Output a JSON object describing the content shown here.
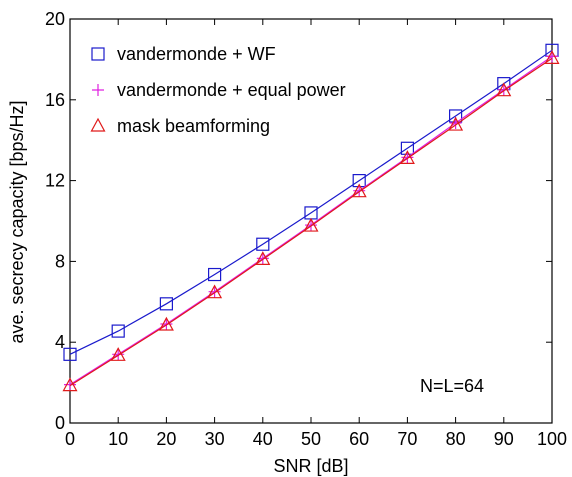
{
  "chart_data": {
    "type": "line",
    "xlabel": "SNR [dB]",
    "ylabel": "ave. secrecy capacity [bps/Hz]",
    "xlim": [
      0,
      100
    ],
    "ylim": [
      0,
      20
    ],
    "x_ticks": [
      "0",
      "10",
      "20",
      "30",
      "40",
      "50",
      "60",
      "70",
      "80",
      "90",
      "100"
    ],
    "y_ticks": [
      "0",
      "4",
      "8",
      "12",
      "16",
      "20"
    ],
    "x": [
      0,
      10,
      20,
      30,
      40,
      50,
      60,
      70,
      80,
      90,
      100
    ],
    "legend_position": "top-left",
    "annotation": "N=L=64",
    "grid": false,
    "series": [
      {
        "name": "vandermonde + WF",
        "marker": "square",
        "color": "#1a1acc",
        "values": [
          3.4,
          4.55,
          5.9,
          7.35,
          8.85,
          10.4,
          12.0,
          13.6,
          15.2,
          16.8,
          18.45
        ]
      },
      {
        "name": "vandermonde + equal power",
        "marker": "plus",
        "color": "#e020e0",
        "values": [
          1.9,
          3.4,
          4.9,
          6.5,
          8.15,
          9.8,
          11.5,
          13.15,
          14.85,
          16.5,
          18.15
        ]
      },
      {
        "name": "mask beamforming",
        "marker": "triangle",
        "color": "#e01a1a",
        "values": [
          1.85,
          3.35,
          4.85,
          6.45,
          8.1,
          9.75,
          11.45,
          13.1,
          14.75,
          16.45,
          18.05
        ]
      }
    ]
  }
}
